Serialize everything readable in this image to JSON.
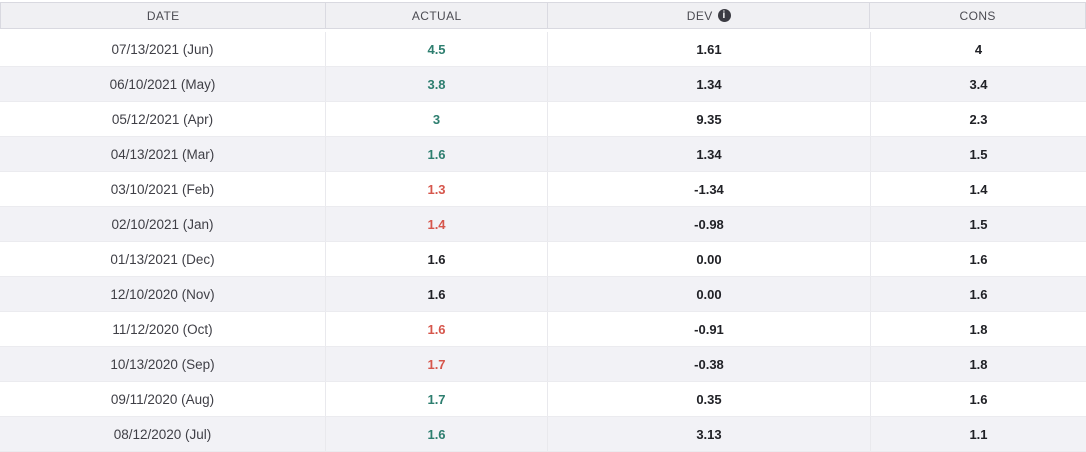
{
  "colors": {
    "positive": "#2d7e6f",
    "negative": "#d6564c",
    "neutral": "#202126",
    "header_bg": "#f0f0f3",
    "row_alt_bg": "#f2f2f6",
    "icon_bg": "#3b3b42"
  },
  "icons": {
    "info_glyph": "i"
  },
  "table": {
    "columns": [
      {
        "key": "date",
        "label": "DATE"
      },
      {
        "key": "actual",
        "label": "ACTUAL"
      },
      {
        "key": "dev",
        "label": "DEV",
        "info_icon": true
      },
      {
        "key": "cons",
        "label": "CONS"
      }
    ],
    "rows": [
      {
        "date": "07/13/2021 (Jun)",
        "actual": "4.5",
        "trend": "up",
        "dev": "1.61",
        "cons": "4"
      },
      {
        "date": "06/10/2021 (May)",
        "actual": "3.8",
        "trend": "up",
        "dev": "1.34",
        "cons": "3.4"
      },
      {
        "date": "05/12/2021 (Apr)",
        "actual": "3",
        "trend": "up",
        "dev": "9.35",
        "cons": "2.3"
      },
      {
        "date": "04/13/2021 (Mar)",
        "actual": "1.6",
        "trend": "up",
        "dev": "1.34",
        "cons": "1.5"
      },
      {
        "date": "03/10/2021 (Feb)",
        "actual": "1.3",
        "trend": "down",
        "dev": "-1.34",
        "cons": "1.4"
      },
      {
        "date": "02/10/2021 (Jan)",
        "actual": "1.4",
        "trend": "down",
        "dev": "-0.98",
        "cons": "1.5"
      },
      {
        "date": "01/13/2021 (Dec)",
        "actual": "1.6",
        "trend": "flat",
        "dev": "0.00",
        "cons": "1.6"
      },
      {
        "date": "12/10/2020 (Nov)",
        "actual": "1.6",
        "trend": "flat",
        "dev": "0.00",
        "cons": "1.6"
      },
      {
        "date": "11/12/2020 (Oct)",
        "actual": "1.6",
        "trend": "down",
        "dev": "-0.91",
        "cons": "1.8"
      },
      {
        "date": "10/13/2020 (Sep)",
        "actual": "1.7",
        "trend": "down",
        "dev": "-0.38",
        "cons": "1.8"
      },
      {
        "date": "09/11/2020 (Aug)",
        "actual": "1.7",
        "trend": "up",
        "dev": "0.35",
        "cons": "1.6"
      },
      {
        "date": "08/12/2020 (Jul)",
        "actual": "1.6",
        "trend": "up",
        "dev": "3.13",
        "cons": "1.1"
      }
    ]
  }
}
